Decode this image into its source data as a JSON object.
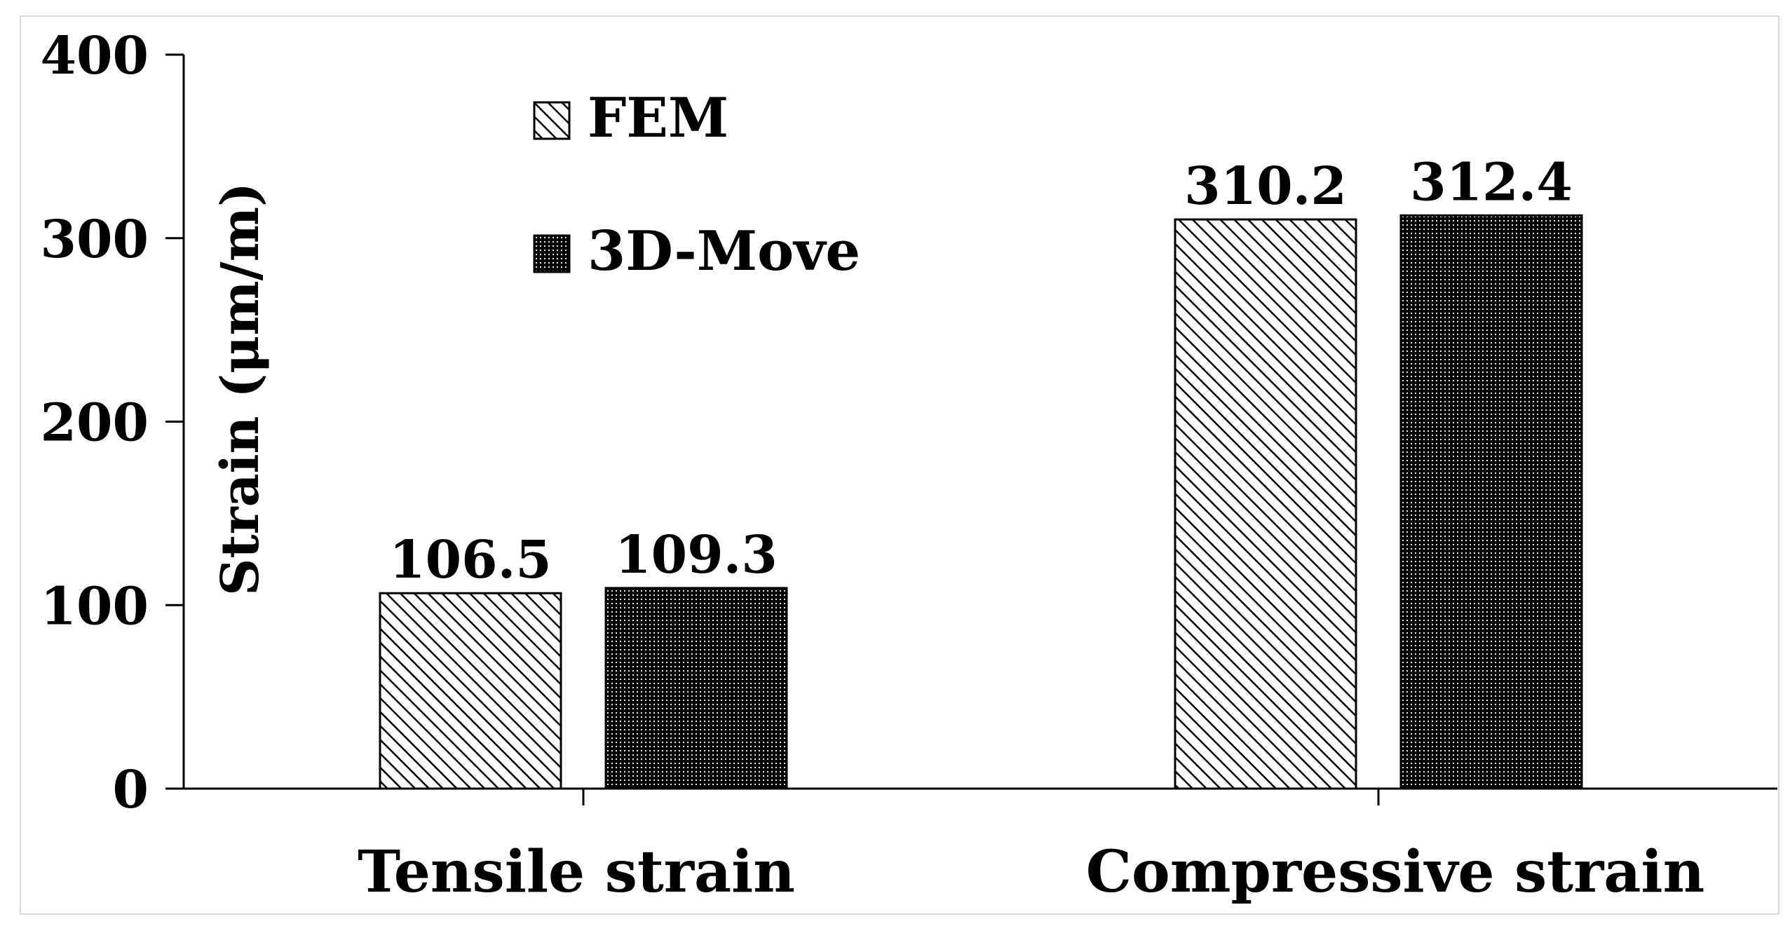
{
  "chart_data": {
    "type": "bar",
    "title": "",
    "xlabel": "",
    "ylabel": "Strain (μm/m)",
    "categories": [
      "Tensile strain",
      "Compressive strain"
    ],
    "series": [
      {
        "name": "FEM",
        "values": [
          106.5,
          310.2
        ],
        "pattern": "diagonal-hatch",
        "color": "#000000"
      },
      {
        "name": "3D-Move",
        "values": [
          109.3,
          312.4
        ],
        "pattern": "dense-dots",
        "color": "#000000"
      }
    ],
    "data_labels": [
      [
        "106.5",
        "310.2"
      ],
      [
        "109.3",
        "312.4"
      ]
    ],
    "ylim": [
      0,
      400
    ],
    "yticks": [
      "0",
      "100",
      "200",
      "300",
      "400"
    ],
    "grid": false,
    "legend_position": "top-left"
  }
}
